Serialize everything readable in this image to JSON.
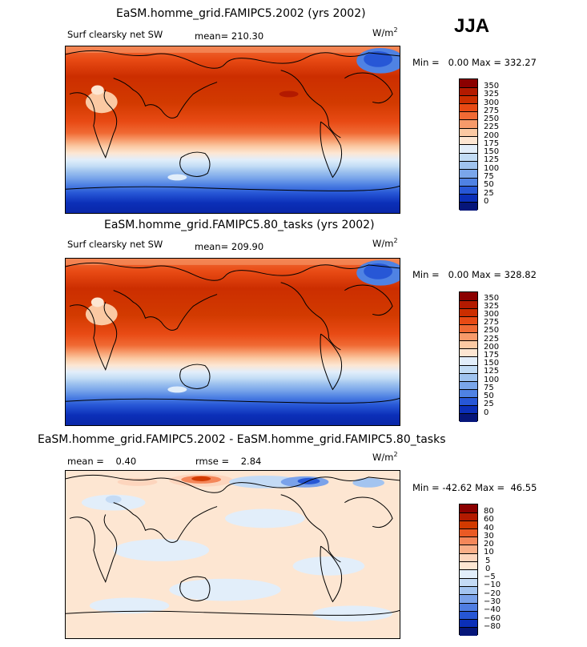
{
  "season": "JJA",
  "units": "W/m",
  "units_exp": "2",
  "panels": [
    {
      "title": "EaSM.homme_grid.FAMIPC5.2002 (yrs 2002)",
      "variable": "Surf clearsky net SW",
      "mean_label": "mean=",
      "mean_value": "210.30",
      "min_label": "Min =",
      "min_value": "0.00",
      "max_label": "Max =",
      "max_value": "332.27",
      "colorbar_levels": [
        "350",
        "325",
        "300",
        "275",
        "250",
        "225",
        "200",
        "175",
        "150",
        "125",
        "100",
        "75",
        "50",
        "25",
        "0"
      ],
      "colorbar_colors": [
        "#8b0000",
        "#b31a00",
        "#cc2e00",
        "#e84a14",
        "#f06a34",
        "#f79a6a",
        "#fbc9a3",
        "#fde6d2",
        "#e2eefa",
        "#c2dcf5",
        "#9fc3ef",
        "#7aa6ea",
        "#4f82e3",
        "#2757d6",
        "#0b2fb8",
        "#06167a"
      ]
    },
    {
      "title": "EaSM.homme_grid.FAMIPC5.80_tasks (yrs 2002)",
      "variable": "Surf clearsky net SW",
      "mean_label": "mean=",
      "mean_value": "209.90",
      "min_label": "Min =",
      "min_value": "0.00",
      "max_label": "Max =",
      "max_value": "328.82",
      "colorbar_levels": [
        "350",
        "325",
        "300",
        "275",
        "250",
        "225",
        "200",
        "175",
        "150",
        "125",
        "100",
        "75",
        "50",
        "25",
        "0"
      ],
      "colorbar_colors": [
        "#8b0000",
        "#b31a00",
        "#cc2e00",
        "#e84a14",
        "#f06a34",
        "#f79a6a",
        "#fbc9a3",
        "#fde6d2",
        "#e2eefa",
        "#c2dcf5",
        "#9fc3ef",
        "#7aa6ea",
        "#4f82e3",
        "#2757d6",
        "#0b2fb8",
        "#06167a"
      ]
    },
    {
      "title": "EaSM.homme_grid.FAMIPC5.2002 - EaSM.homme_grid.FAMIPC5.80_tasks",
      "mean_label": "mean =",
      "mean_value": "0.40",
      "rmse_label": "rmse =",
      "rmse_value": "2.84",
      "min_label": "Min =",
      "min_value": "-42.62",
      "max_label": "Max =",
      "max_value": "46.55",
      "colorbar_levels": [
        "80",
        "60",
        "40",
        "30",
        "20",
        "10",
        "5",
        "0",
        "−5",
        "−10",
        "−20",
        "−30",
        "−40",
        "−60",
        "−80"
      ],
      "colorbar_colors": [
        "#8b0000",
        "#b31a00",
        "#d23a00",
        "#ea5a24",
        "#f4875a",
        "#f9ae88",
        "#fdd5bd",
        "#fde6d2",
        "#e2eefa",
        "#c4dbf5",
        "#a3c4f0",
        "#7aa2ea",
        "#4f7de2",
        "#2656d4",
        "#0b2fb8",
        "#06167a"
      ]
    }
  ]
}
